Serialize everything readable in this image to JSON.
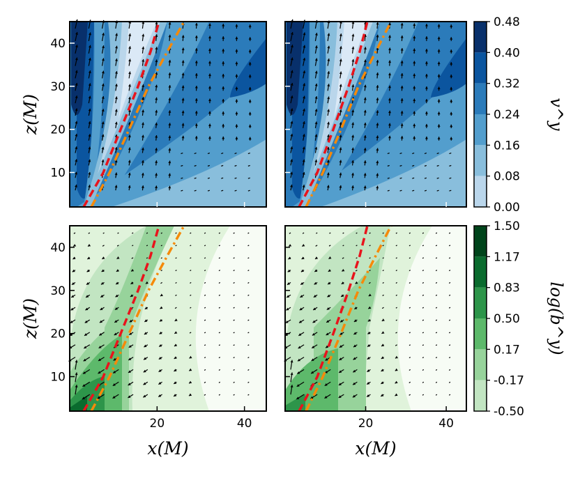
{
  "chart_data": {
    "type": "contour-quiver",
    "layout": "2x2",
    "x_axis": {
      "label": "x(M)",
      "range": [
        0,
        45
      ],
      "ticks": [
        20,
        40
      ]
    },
    "z_axis": {
      "label": "z(M)",
      "range": [
        2,
        45
      ],
      "ticks": [
        10,
        20,
        30,
        40
      ]
    },
    "colorbars": [
      {
        "row": "top",
        "title": "v^y",
        "ticks": [
          "0.48",
          "0.40",
          "0.32",
          "0.24",
          "0.16",
          "0.08",
          "0.00"
        ],
        "range": [
          0.0,
          0.48
        ]
      },
      {
        "row": "bottom",
        "title": "log(b^y)",
        "ticks": [
          "1.50",
          "1.17",
          "0.83",
          "0.50",
          "0.17",
          "-0.17",
          "-0.50"
        ],
        "range": [
          -0.5,
          1.5
        ]
      }
    ],
    "overlay_lines": [
      {
        "name": "red-dashed-boundary",
        "color": "#e8141c",
        "style": "dashed",
        "points": [
          [
            4,
            2
          ],
          [
            7.5,
            10
          ],
          [
            11,
            20
          ],
          [
            14.5,
            30
          ],
          [
            17.5,
            38
          ],
          [
            20,
            45
          ]
        ]
      },
      {
        "name": "orange-dashdot-boundary",
        "color": "#f58a0a",
        "style": "dashdot",
        "points": [
          [
            5.5,
            2
          ],
          [
            9.5,
            10
          ],
          [
            13.5,
            20
          ],
          [
            17.5,
            30
          ],
          [
            21.5,
            38
          ],
          [
            26,
            45
          ]
        ]
      }
    ],
    "panels": [
      {
        "id": "top-left",
        "field": "v^y",
        "row": 0,
        "col": 0
      },
      {
        "id": "top-right",
        "field": "v^y",
        "row": 0,
        "col": 1
      },
      {
        "id": "bottom-left",
        "field": "log(b^y)",
        "row": 1,
        "col": 0
      },
      {
        "id": "bottom-right",
        "field": "log(b^y)",
        "row": 1,
        "col": 1
      }
    ]
  },
  "colors": {
    "blues": [
      "#f7fbff",
      "#dbe9f6",
      "#bad6eb",
      "#89bedc",
      "#539ecd",
      "#2b7bba",
      "#0b559f",
      "#08306b"
    ],
    "greens": [
      "#f7fcf5",
      "#e0f3db",
      "#c2e5c2",
      "#97d39b",
      "#5db96b",
      "#2d954a",
      "#0a6b2e",
      "#00441b"
    ]
  }
}
